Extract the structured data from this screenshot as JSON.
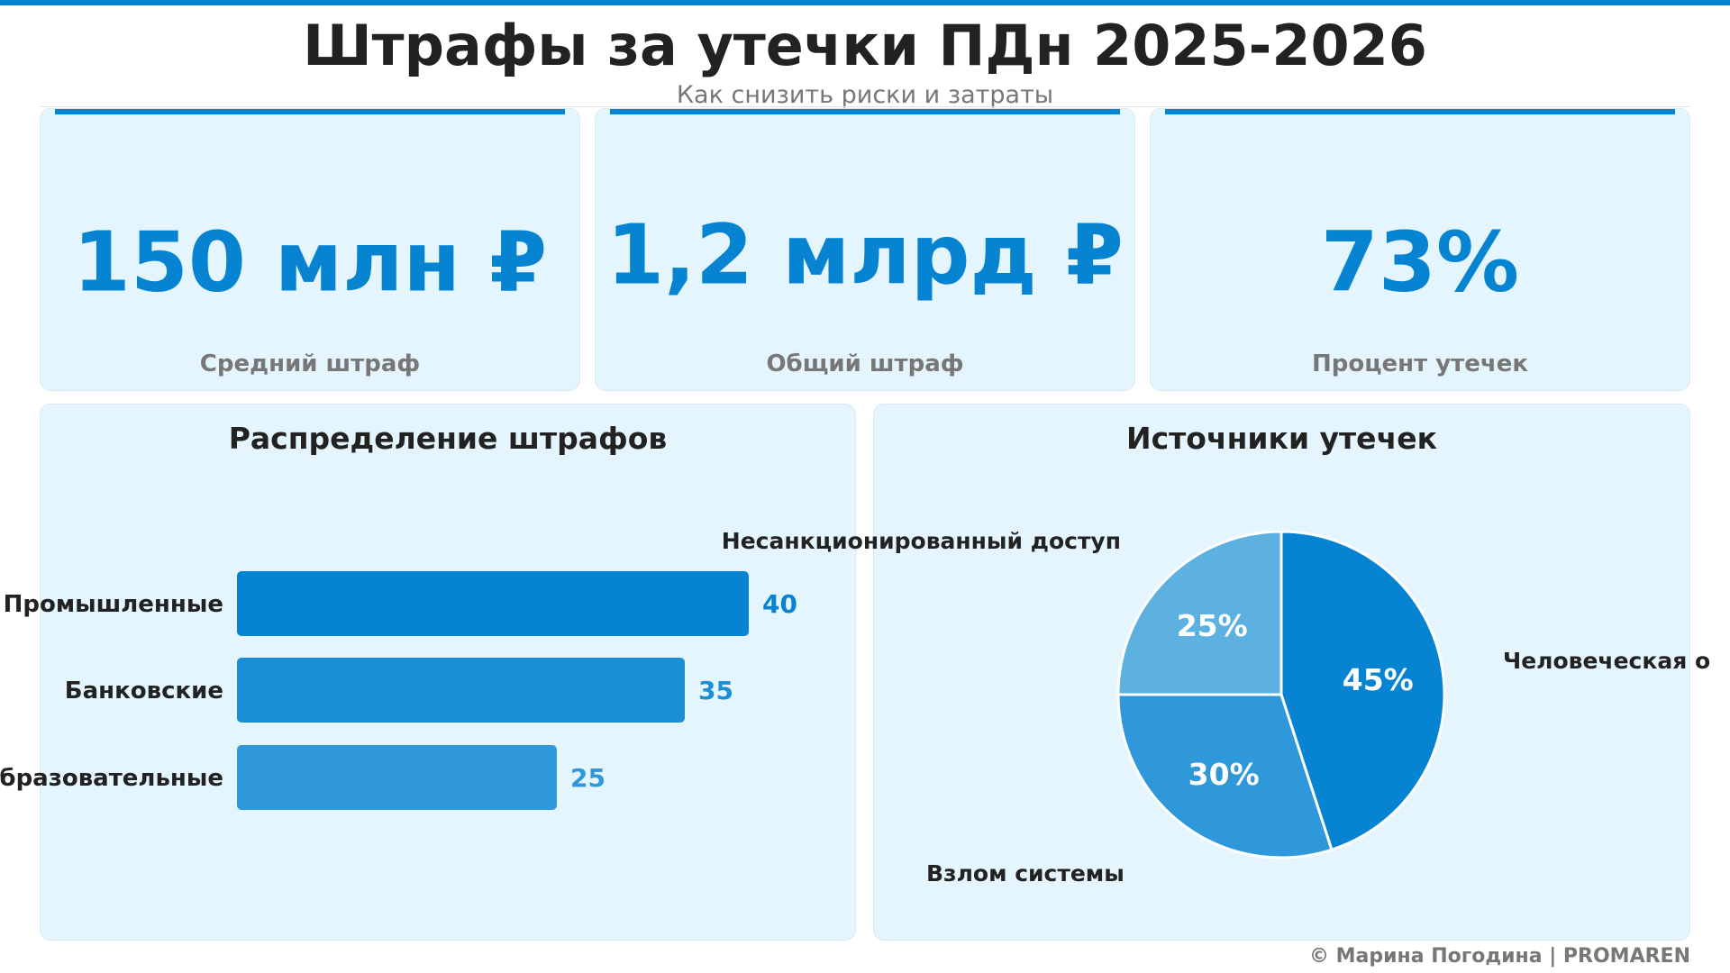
{
  "header": {
    "title": "Штрафы за утечки ПДн 2025-2026",
    "subtitle": "Как снизить риски и затраты"
  },
  "kpis": [
    {
      "value": "150 млн ₽",
      "label": "Средний штраф"
    },
    {
      "value": "1,2 млрд ₽",
      "label": "Общий штраф"
    },
    {
      "value": "73%",
      "label": "Процент утечек"
    }
  ],
  "colors": {
    "accent": "#0683D1",
    "card_bg": "#E5F5FE"
  },
  "chart_data": [
    {
      "type": "bar",
      "orientation": "horizontal",
      "title": "Распределение штрафов",
      "categories": [
        "Промышленные",
        "Банковские",
        "Образовательные"
      ],
      "values": [
        40,
        35,
        25
      ],
      "colors": [
        "#0683D1",
        "#1A8FD6",
        "#2E98DA"
      ]
    },
    {
      "type": "pie",
      "title": "Источники утечек",
      "categories": [
        "Человеческая о",
        "Взлом системы",
        "Несанкционированный доступ"
      ],
      "values": [
        45,
        30,
        25
      ],
      "labels": [
        "45%",
        "30%",
        "25%"
      ],
      "colors": [
        "#0683D1",
        "#2E98DA",
        "#5CB1E0"
      ]
    }
  ],
  "footer": "© Марина Погодина | PROMAREN"
}
